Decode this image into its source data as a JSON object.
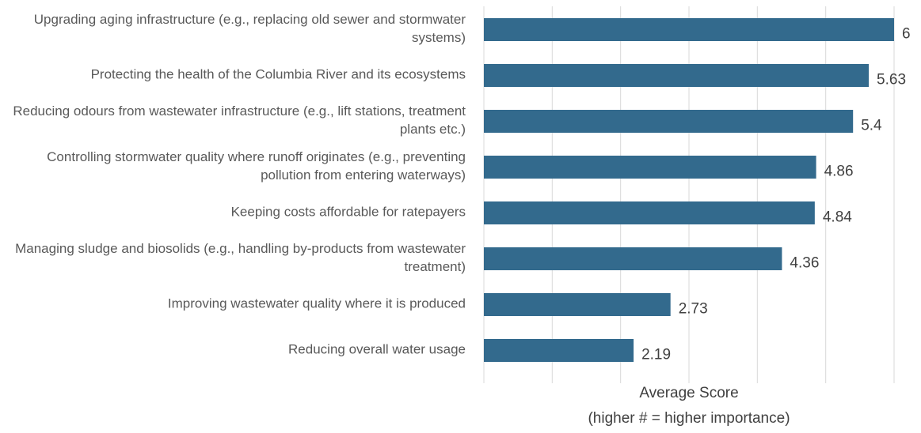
{
  "chart_data": {
    "type": "hbar",
    "categories": [
      "Upgrading aging infrastructure (e.g., replacing old sewer and stormwater systems)",
      "Protecting the health of the Columbia River and its ecosystems",
      "Reducing odours from wastewater infrastructure (e.g., lift stations, treatment plants etc.)",
      "Controlling stormwater quality where runoff originates (e.g., preventing pollution from entering waterways)",
      "Keeping costs affordable for ratepayers",
      "Managing sludge and biosolids (e.g., handling by-products from wastewater treatment)",
      "Improving wastewater quality where it is produced",
      "Reducing overall water usage"
    ],
    "values": [
      6,
      5.63,
      5.4,
      4.86,
      4.84,
      4.36,
      2.73,
      2.19
    ],
    "color": "#336a8d",
    "xlim": [
      0,
      6
    ],
    "xticks": [
      0,
      1,
      2,
      3,
      4,
      5,
      6
    ],
    "grid": true,
    "xlabel": "Average Score",
    "xlabel_note": "(higher # = higher importance)"
  }
}
